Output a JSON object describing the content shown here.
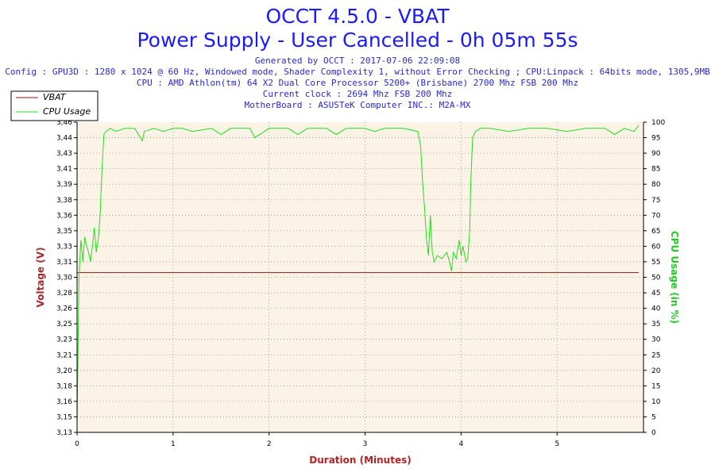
{
  "header": {
    "title": "OCCT 4.5.0 - VBAT",
    "subtitle": "Power Supply - User Cancelled - 0h 05m 55s",
    "generated": "Generated by OCCT : 2017-07-06 22:09:08",
    "config": "Config : GPU3D : 1280 x 1024 @ 60 Hz, Windowed mode, Shader Complexity 1, without Error Checking ; CPU:Linpack : 64bits mode, 1305,9MB",
    "cpu": "CPU : AMD Athlon(tm) 64 X2 Dual Core Processor 5200+ (Brisbane) 2700 Mhz FSB 200 Mhz",
    "clock": "Current clock : 2694 Mhz FSB 200 Mhz",
    "motherboard": "MotherBoard : ASUSTeK Computer INC.: M2A-MX"
  },
  "colors": {
    "vbat": "#8b1a1a",
    "cpu": "#22dd22",
    "plot_bg": "#faf3e6",
    "grid": "#a09070",
    "left_label": "#a52a2a",
    "right_label": "#22cc22",
    "x_label": "#b22222"
  },
  "chart_data": {
    "type": "line",
    "xlabel": "Duration (Minutes)",
    "ylabel": "Voltage (V)",
    "ylabel_right": "CPU Usage (in %)",
    "xlim": [
      0,
      5.9
    ],
    "ylim": [
      3.13,
      3.46
    ],
    "ylim_right": [
      0,
      100
    ],
    "x_ticks": [
      "0",
      "1",
      "2",
      "3",
      "4",
      "5"
    ],
    "x_tick_values": [
      0,
      1,
      2,
      3,
      4,
      5
    ],
    "y_ticks": [
      "3,13",
      "3,15",
      "3,16",
      "3,18",
      "3,20",
      "3,21",
      "3,23",
      "3,25",
      "3,26",
      "3,28",
      "3,30",
      "3,31",
      "3,33",
      "3,35",
      "3,36",
      "3,38",
      "3,39",
      "3,41",
      "3,43",
      "3,44",
      "3,46"
    ],
    "y_tick_values": [
      3.13,
      3.1465,
      3.163,
      3.1795,
      3.196,
      3.2125,
      3.229,
      3.2455,
      3.262,
      3.2785,
      3.295,
      3.3115,
      3.328,
      3.3445,
      3.361,
      3.3775,
      3.394,
      3.4105,
      3.427,
      3.4435,
      3.46
    ],
    "y_ticks_right": [
      "0",
      "5",
      "10",
      "15",
      "20",
      "25",
      "30",
      "35",
      "40",
      "45",
      "50",
      "55",
      "60",
      "65",
      "70",
      "75",
      "80",
      "85",
      "90",
      "95",
      "100"
    ],
    "y_tick_values_right": [
      0,
      5,
      10,
      15,
      20,
      25,
      30,
      35,
      40,
      45,
      50,
      55,
      60,
      65,
      70,
      75,
      80,
      85,
      90,
      95,
      100
    ],
    "grid": true,
    "legend_position": "top-left",
    "series": [
      {
        "name": "VBAT",
        "axis": "left",
        "x": [
          0,
          5.85
        ],
        "values": [
          3.3,
          3.3
        ]
      },
      {
        "name": "CPU Usage",
        "axis": "right",
        "x": [
          0,
          0.02,
          0.04,
          0.06,
          0.08,
          0.1,
          0.12,
          0.14,
          0.16,
          0.18,
          0.2,
          0.22,
          0.24,
          0.26,
          0.28,
          0.3,
          0.35,
          0.4,
          0.5,
          0.6,
          0.68,
          0.7,
          0.8,
          0.9,
          1.0,
          1.1,
          1.2,
          1.4,
          1.5,
          1.6,
          1.8,
          1.85,
          2.0,
          2.2,
          2.3,
          2.4,
          2.6,
          2.7,
          2.8,
          3.0,
          3.1,
          3.2,
          3.4,
          3.55,
          3.58,
          3.6,
          3.62,
          3.64,
          3.66,
          3.68,
          3.7,
          3.72,
          3.75,
          3.8,
          3.85,
          3.88,
          3.9,
          3.92,
          3.95,
          3.98,
          4.0,
          4.02,
          4.05,
          4.07,
          4.09,
          4.1,
          4.12,
          4.15,
          4.2,
          4.3,
          4.5,
          4.7,
          4.9,
          5.1,
          5.3,
          5.5,
          5.6,
          5.7,
          5.8,
          5.85
        ],
        "values": [
          3,
          50,
          62,
          55,
          63,
          60,
          58,
          55,
          60,
          66,
          58,
          62,
          70,
          85,
          96,
          97,
          98,
          97,
          98,
          98,
          94,
          97,
          98,
          97,
          98,
          98,
          97,
          98,
          96,
          98,
          98,
          95,
          98,
          98,
          96,
          98,
          98,
          96,
          98,
          98,
          97,
          98,
          98,
          97,
          92,
          80,
          72,
          62,
          57,
          70,
          58,
          55,
          57,
          56,
          58,
          55,
          52,
          58,
          56,
          62,
          57,
          60,
          55,
          56,
          65,
          80,
          95,
          97,
          98,
          98,
          97,
          98,
          98,
          97,
          98,
          98,
          96,
          98,
          97,
          99
        ]
      }
    ]
  }
}
